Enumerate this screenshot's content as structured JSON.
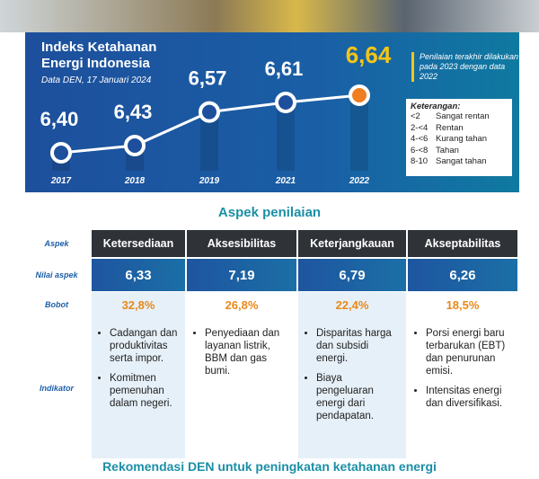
{
  "chart_data": {
    "type": "line",
    "title": "Indeks Ketahanan Energi Indonesia",
    "subtitle": "Data DEN, 17 Januari 2024",
    "categories": [
      "2017",
      "2018",
      "2019",
      "2021",
      "2022"
    ],
    "values": [
      6.4,
      6.43,
      6.57,
      6.61,
      6.64
    ],
    "value_labels": [
      "6,40",
      "6,43",
      "6,57",
      "6,61",
      "6,64"
    ],
    "color": "#ffffff",
    "highlight_color": "#f07d1e"
  },
  "note": "Penilaian terakhir dilakukan pada 2023 dengan data 2022",
  "legend": {
    "title": "Keterangan:",
    "items": [
      {
        "range": "<2",
        "label": "Sangat rentan"
      },
      {
        "range": "2-<4",
        "label": "Rentan"
      },
      {
        "range": "4-<6",
        "label": "Kurang tahan"
      },
      {
        "range": "6-<8",
        "label": "Tahan"
      },
      {
        "range": "8-10",
        "label": "Sangat tahan"
      }
    ]
  },
  "section_title": "Aspek penilaian",
  "table": {
    "row_labels": [
      "Aspek",
      "Nilai aspek",
      "Bobot",
      "Indikator"
    ],
    "columns": [
      {
        "aspek": "Ketersediaan",
        "nilai": "6,33",
        "bobot": "32,8%",
        "indikator": [
          "Cadangan dan produktivitas serta impor.",
          "Komitmen pemenuhan dalam negeri."
        ]
      },
      {
        "aspek": "Aksesibilitas",
        "nilai": "7,19",
        "bobot": "26,8%",
        "indikator": [
          "Penyediaan dan layanan listrik, BBM dan gas bumi."
        ]
      },
      {
        "aspek": "Keterjangkauan",
        "nilai": "6,79",
        "bobot": "22,4%",
        "indikator": [
          "Disparitas harga dan subsidi energi.",
          "Biaya pengeluaran energi dari pendapatan."
        ]
      },
      {
        "aspek": "Akseptabilitas",
        "nilai": "6,26",
        "bobot": "18,5%",
        "indikator": [
          "Porsi energi baru terbarukan (EBT) dan penurunan emisi.",
          "Intensitas energi dan diversifikasi."
        ]
      }
    ]
  },
  "footer": "Rekomendasi DEN untuk peningkatan ketahanan energi"
}
